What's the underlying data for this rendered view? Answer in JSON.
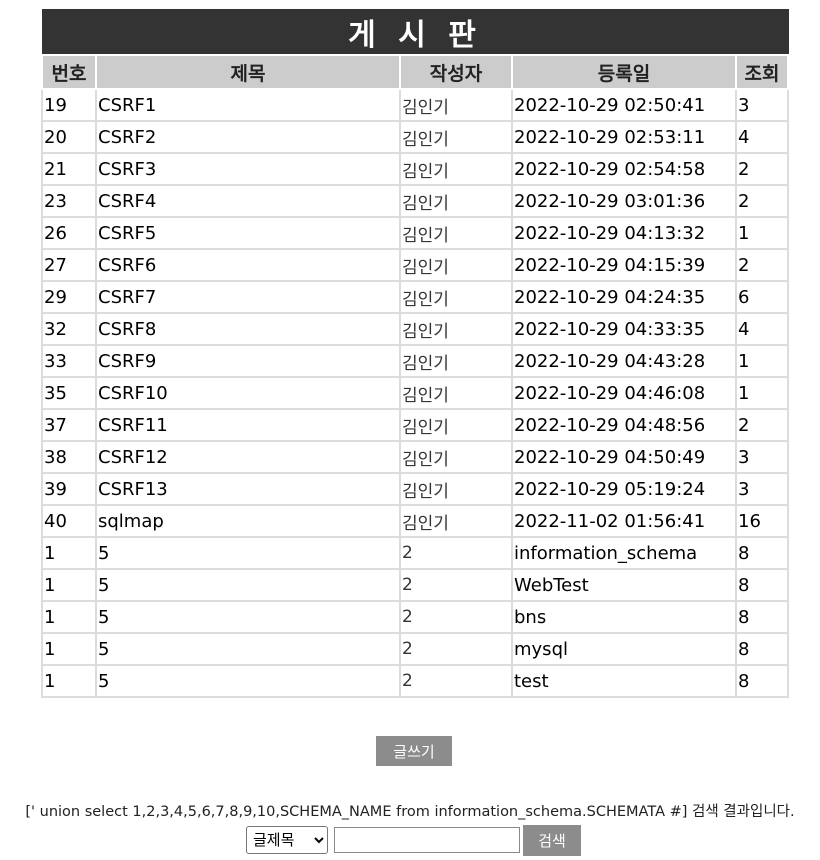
{
  "board": {
    "title": "게 시 판",
    "columns": [
      "번호",
      "제목",
      "작성자",
      "등록일",
      "조회"
    ],
    "rows": [
      [
        "19",
        "CSRF1",
        "김인기",
        "2022-10-29 02:50:41",
        "3"
      ],
      [
        "20",
        "CSRF2",
        "김인기",
        "2022-10-29 02:53:11",
        "4"
      ],
      [
        "21",
        "CSRF3",
        "김인기",
        "2022-10-29 02:54:58",
        "2"
      ],
      [
        "23",
        "CSRF4",
        "김인기",
        "2022-10-29 03:01:36",
        "2"
      ],
      [
        "26",
        "CSRF5",
        "김인기",
        "2022-10-29 04:13:32",
        "1"
      ],
      [
        "27",
        "CSRF6",
        "김인기",
        "2022-10-29 04:15:39",
        "2"
      ],
      [
        "29",
        "CSRF7",
        "김인기",
        "2022-10-29 04:24:35",
        "6"
      ],
      [
        "32",
        "CSRF8",
        "김인기",
        "2022-10-29 04:33:35",
        "4"
      ],
      [
        "33",
        "CSRF9",
        "김인기",
        "2022-10-29 04:43:28",
        "1"
      ],
      [
        "35",
        "CSRF10",
        "김인기",
        "2022-10-29 04:46:08",
        "1"
      ],
      [
        "37",
        "CSRF11",
        "김인기",
        "2022-10-29 04:48:56",
        "2"
      ],
      [
        "38",
        "CSRF12",
        "김인기",
        "2022-10-29 04:50:49",
        "3"
      ],
      [
        "39",
        "CSRF13",
        "김인기",
        "2022-10-29 05:19:24",
        "3"
      ],
      [
        "40",
        "sqlmap",
        "김인기",
        "2022-11-02 01:56:41",
        "16"
      ],
      [
        "1",
        "5",
        "2",
        "information_schema",
        "8"
      ],
      [
        "1",
        "5",
        "2",
        "WebTest",
        "8"
      ],
      [
        "1",
        "5",
        "2",
        "bns",
        "8"
      ],
      [
        "1",
        "5",
        "2",
        "mysql",
        "8"
      ],
      [
        "1",
        "5",
        "2",
        "test",
        "8"
      ]
    ]
  },
  "actions": {
    "write_label": "글쓰기"
  },
  "search": {
    "result_text": "[' union select 1,2,3,4,5,6,7,8,9,10,SCHEMA_NAME from information_schema.SCHEMATA #] 검색 결과입니다.",
    "selected_option": "글제목",
    "input_value": "",
    "button_label": "검색"
  },
  "colors": {
    "title_bar": "#333333",
    "header_bg": "#cccccc",
    "button_bg": "#8c8c8c",
    "cell_border": "#dcdcdc"
  }
}
